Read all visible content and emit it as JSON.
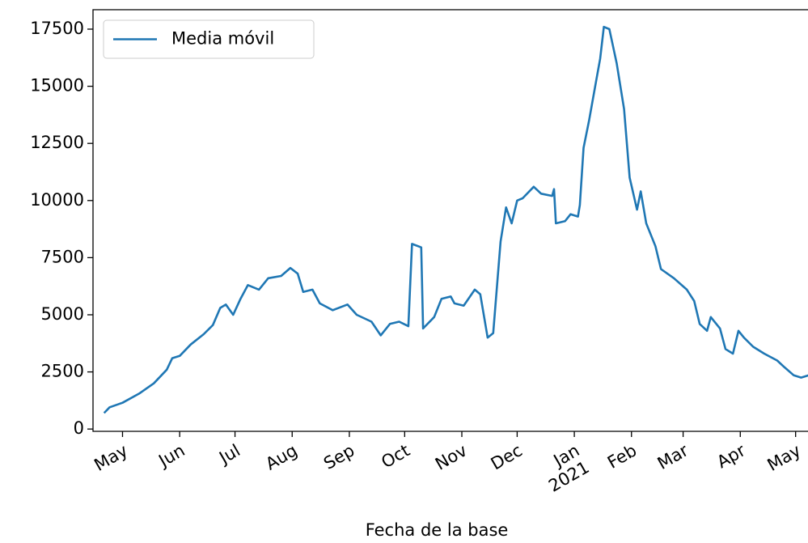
{
  "chart_data": {
    "type": "line",
    "xlabel": "Fecha de la base",
    "x": [
      "2020-04-21",
      "2020-04-24",
      "2020-05-01",
      "2020-05-10",
      "2020-05-18",
      "2020-05-25",
      "2020-05-28",
      "2020-06-01",
      "2020-06-07",
      "2020-06-14",
      "2020-06-19",
      "2020-06-23",
      "2020-06-26",
      "2020-06-30",
      "2020-07-04",
      "2020-07-08",
      "2020-07-14",
      "2020-07-19",
      "2020-07-26",
      "2020-07-31",
      "2020-08-04",
      "2020-08-07",
      "2020-08-12",
      "2020-08-16",
      "2020-08-23",
      "2020-08-31",
      "2020-09-05",
      "2020-09-13",
      "2020-09-18",
      "2020-09-23",
      "2020-09-28",
      "2020-10-03",
      "2020-10-05",
      "2020-10-10",
      "2020-10-11",
      "2020-10-17",
      "2020-10-21",
      "2020-10-26",
      "2020-10-28",
      "2020-11-02",
      "2020-11-08",
      "2020-11-11",
      "2020-11-15",
      "2020-11-18",
      "2020-11-22",
      "2020-11-25",
      "2020-11-28",
      "2020-12-01",
      "2020-12-04",
      "2020-12-10",
      "2020-12-14",
      "2020-12-20",
      "2020-12-21",
      "2020-12-22",
      "2020-12-27",
      "2020-12-30",
      "2021-01-03",
      "2021-01-04",
      "2021-01-06",
      "2021-01-09",
      "2021-01-13",
      "2021-01-15",
      "2021-01-17",
      "2021-01-20",
      "2021-01-24",
      "2021-01-28",
      "2021-01-31",
      "2021-02-04",
      "2021-02-06",
      "2021-02-09",
      "2021-02-14",
      "2021-02-17",
      "2021-02-24",
      "2021-03-03",
      "2021-03-07",
      "2021-03-10",
      "2021-03-14",
      "2021-03-16",
      "2021-03-21",
      "2021-03-24",
      "2021-03-28",
      "2021-03-31",
      "2021-04-03",
      "2021-04-08",
      "2021-04-14",
      "2021-04-21",
      "2021-04-25",
      "2021-04-30",
      "2021-05-04",
      "2021-05-10"
    ],
    "series": [
      {
        "name": "Media móvil",
        "color": "#1f77b4",
        "values": [
          700,
          950,
          1150,
          1550,
          2000,
          2600,
          3100,
          3200,
          3700,
          4150,
          4550,
          5300,
          5450,
          5000,
          5700,
          6300,
          6100,
          6600,
          6700,
          7050,
          6800,
          6000,
          6100,
          5500,
          5200,
          5450,
          5000,
          4700,
          4100,
          4600,
          4700,
          4500,
          8100,
          7950,
          4400,
          4900,
          5700,
          5800,
          5500,
          5400,
          6100,
          5900,
          4000,
          4200,
          8200,
          9700,
          9000,
          10000,
          10100,
          10600,
          10300,
          10200,
          10500,
          9000,
          9100,
          9400,
          9300,
          9800,
          12300,
          13500,
          15300,
          16200,
          17600,
          17500,
          16000,
          14000,
          11000,
          9600,
          10400,
          9000,
          8000,
          7000,
          6600,
          6100,
          5600,
          4600,
          4300,
          4900,
          4400,
          3500,
          3300,
          4300,
          4000,
          3600,
          3300,
          3000,
          2700,
          2350,
          2250,
          2400
        ]
      }
    ],
    "xlim": [
      "2020-04-15",
      "2021-05-18"
    ],
    "xticks": [
      {
        "value": "2020-05-01",
        "label": "May"
      },
      {
        "value": "2020-06-01",
        "label": "Jun"
      },
      {
        "value": "2020-07-01",
        "label": "Jul"
      },
      {
        "value": "2020-08-01",
        "label": "Aug"
      },
      {
        "value": "2020-09-01",
        "label": "Sep"
      },
      {
        "value": "2020-10-01",
        "label": "Oct"
      },
      {
        "value": "2020-11-01",
        "label": "Nov"
      },
      {
        "value": "2020-12-01",
        "label": "Dec"
      },
      {
        "value": "2021-01-01",
        "label": "Jan",
        "sublabel": "2021"
      },
      {
        "value": "2021-02-01",
        "label": "Feb"
      },
      {
        "value": "2021-03-01",
        "label": "Mar"
      },
      {
        "value": "2021-04-01",
        "label": "Apr"
      },
      {
        "value": "2021-05-01",
        "label": "May"
      }
    ],
    "ylim": [
      -100,
      18350
    ],
    "yticks": [
      0,
      2500,
      5000,
      7500,
      10000,
      12500,
      15000,
      17500
    ],
    "grid": false,
    "legend": "upper left"
  }
}
